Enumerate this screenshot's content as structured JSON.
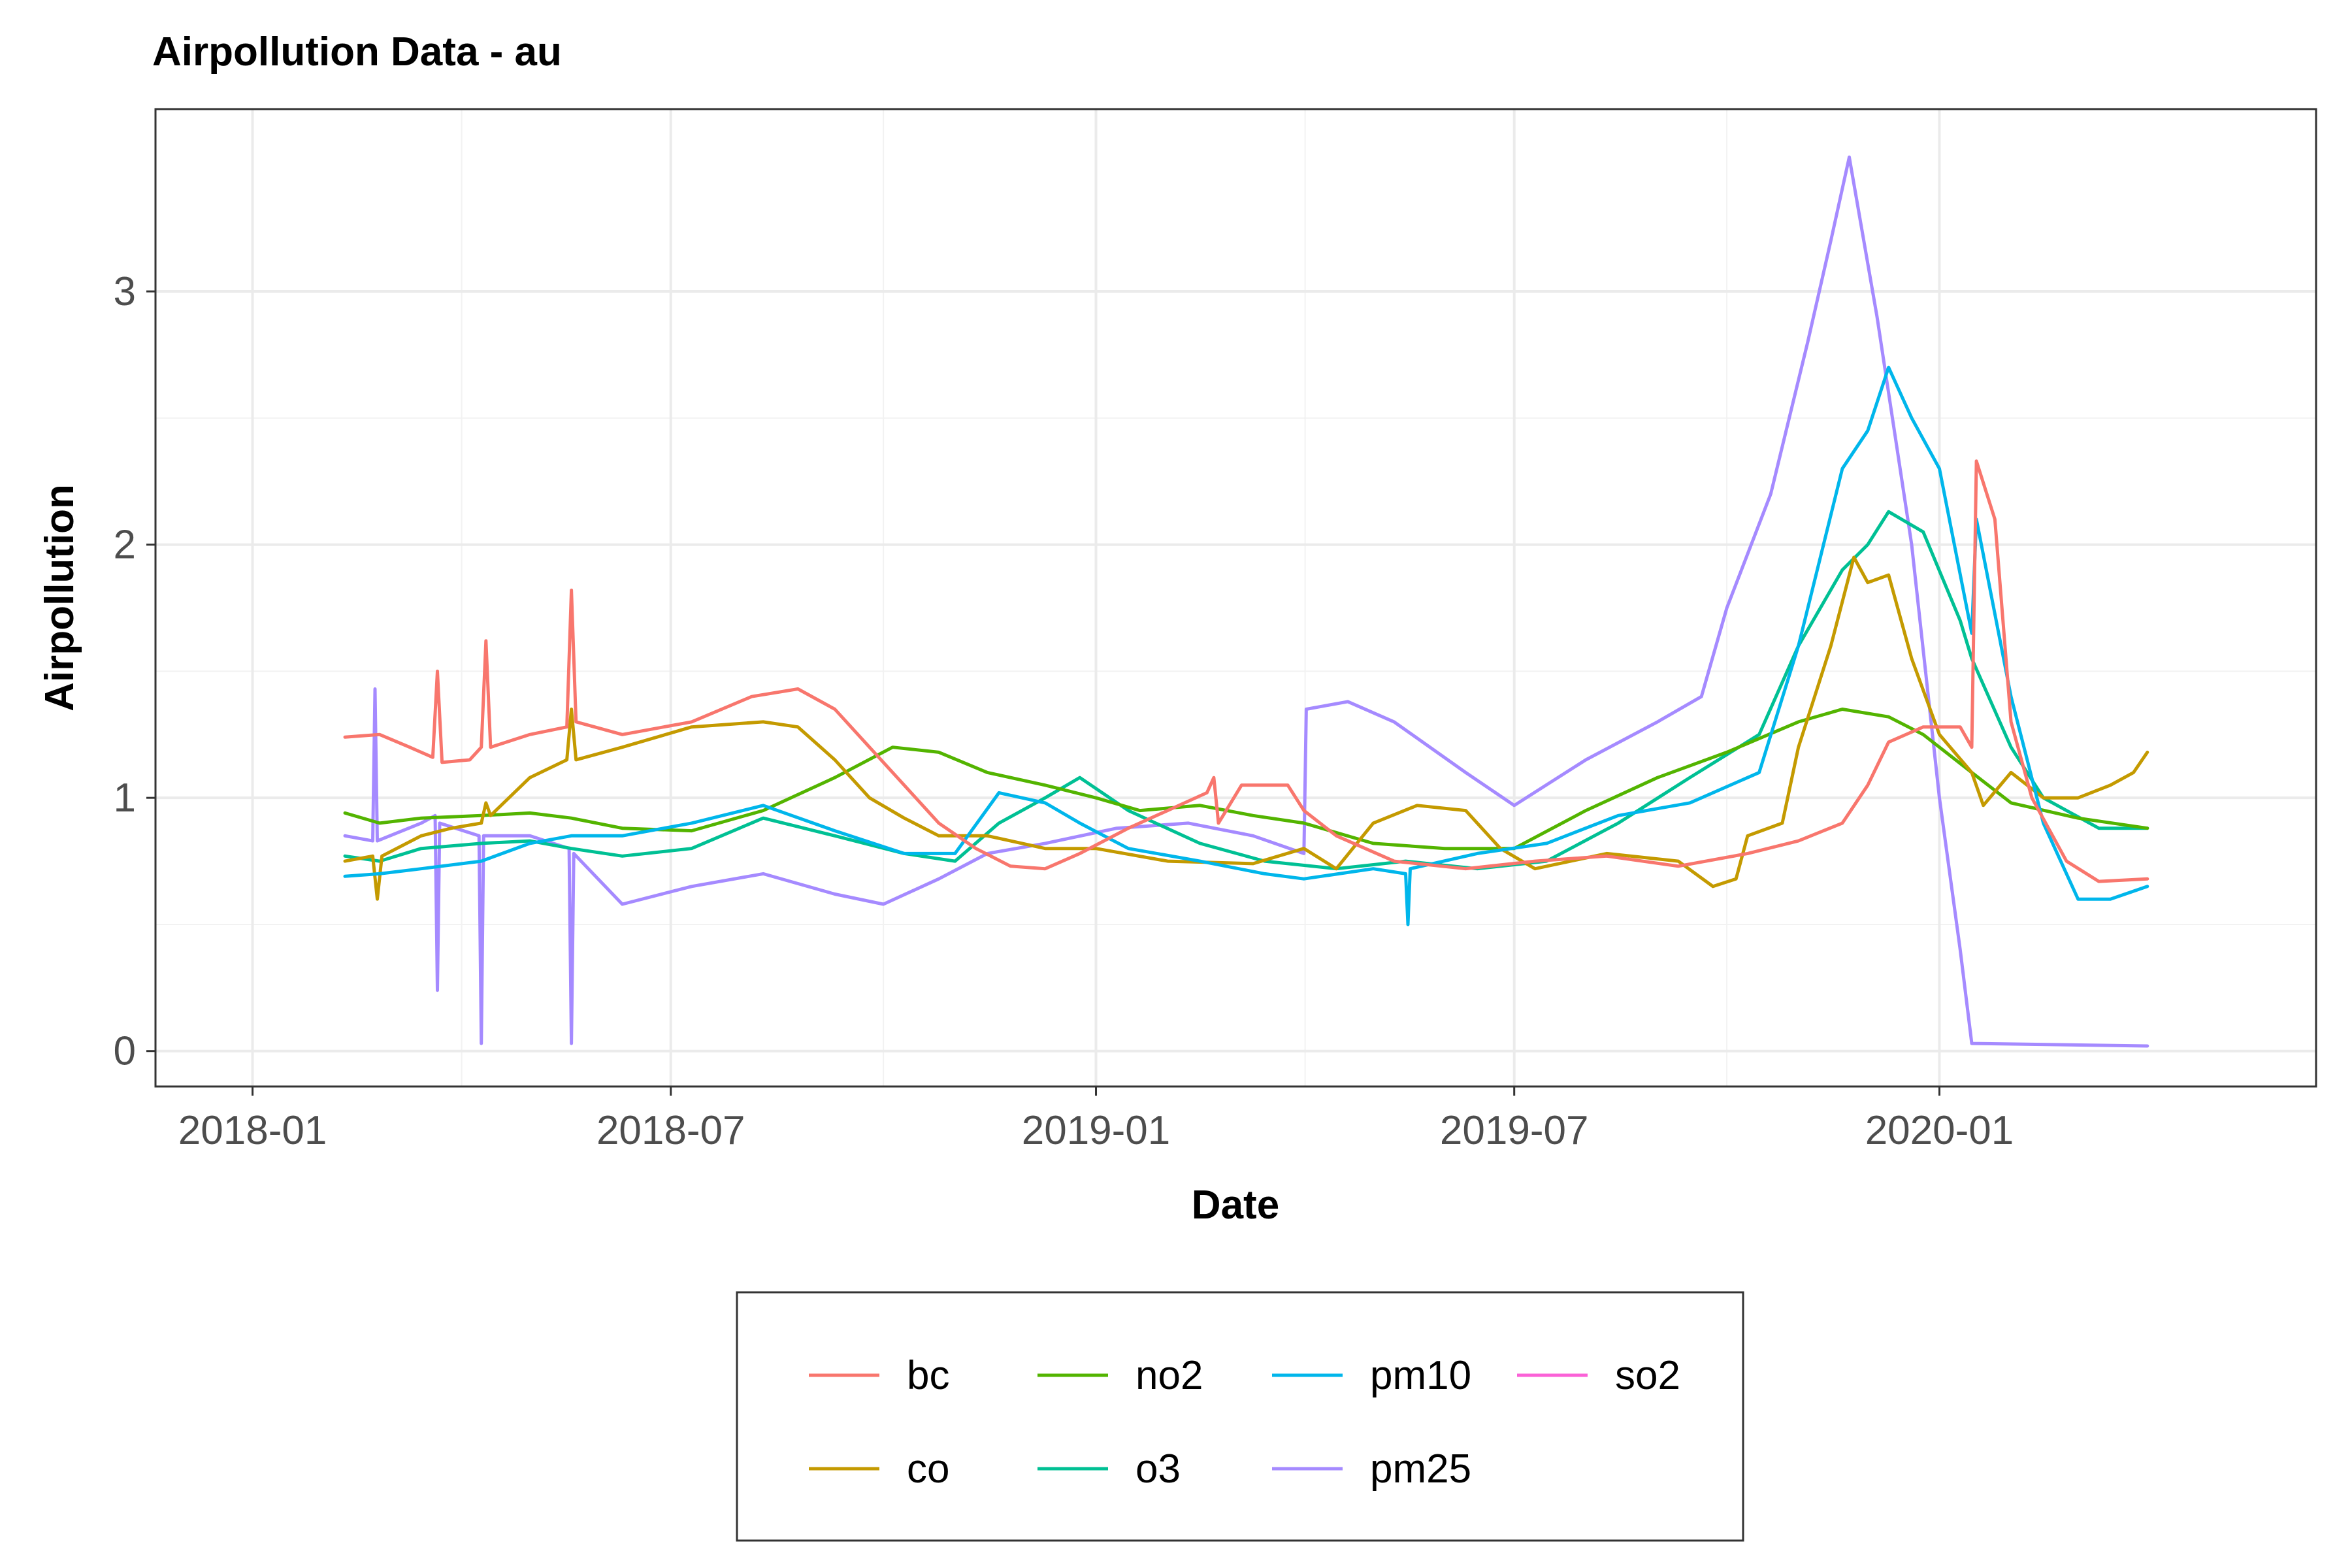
{
  "chart_data": {
    "type": "line",
    "title": "Airpollution Data - au",
    "xlabel": "Date",
    "ylabel": "Airpollution",
    "x_axis": {
      "type": "date",
      "range": [
        "2017-11-20",
        "2020-06-12"
      ],
      "ticks": [
        "2018-01-01",
        "2018-07-01",
        "2019-01-01",
        "2019-07-01",
        "2020-01-01"
      ],
      "tick_labels": [
        "2018-01",
        "2018-07",
        "2019-01",
        "2019-07",
        "2020-01"
      ]
    },
    "y_axis": {
      "range": [
        -0.14,
        3.72
      ],
      "ticks": [
        0,
        1,
        2,
        3
      ],
      "tick_labels": [
        "0",
        "1",
        "2",
        "3"
      ]
    },
    "grid": true,
    "legend": {
      "placement": "bottom",
      "columns": 4,
      "items": [
        "bc",
        "co",
        "no2",
        "o3",
        "pm10",
        "pm25",
        "so2"
      ]
    },
    "series": [
      {
        "name": "bc",
        "color": "#F8766D",
        "points": [
          [
            "2018-02-10",
            1.24
          ],
          [
            "2018-02-25",
            1.25
          ],
          [
            "2018-03-10",
            1.2
          ],
          [
            "2018-03-20",
            1.16
          ],
          [
            "2018-03-22",
            1.5
          ],
          [
            "2018-03-24",
            1.14
          ],
          [
            "2018-04-05",
            1.15
          ],
          [
            "2018-04-10",
            1.2
          ],
          [
            "2018-04-12",
            1.62
          ],
          [
            "2018-04-14",
            1.2
          ],
          [
            "2018-05-01",
            1.25
          ],
          [
            "2018-05-17",
            1.28
          ],
          [
            "2018-05-19",
            1.82
          ],
          [
            "2018-05-21",
            1.3
          ],
          [
            "2018-06-10",
            1.25
          ],
          [
            "2018-07-10",
            1.3
          ],
          [
            "2018-08-05",
            1.4
          ],
          [
            "2018-08-25",
            1.43
          ],
          [
            "2018-09-10",
            1.35
          ],
          [
            "2018-09-25",
            1.2
          ],
          [
            "2018-10-10",
            1.05
          ],
          [
            "2018-10-25",
            0.9
          ],
          [
            "2018-11-10",
            0.8
          ],
          [
            "2018-11-25",
            0.73
          ],
          [
            "2018-12-10",
            0.72
          ],
          [
            "2018-12-25",
            0.78
          ],
          [
            "2019-01-15",
            0.88
          ],
          [
            "2019-02-01",
            0.95
          ],
          [
            "2019-02-18",
            1.02
          ],
          [
            "2019-02-21",
            1.08
          ],
          [
            "2019-02-23",
            0.9
          ],
          [
            "2019-03-05",
            1.05
          ],
          [
            "2019-03-25",
            1.05
          ],
          [
            "2019-04-01",
            0.95
          ],
          [
            "2019-04-15",
            0.85
          ],
          [
            "2019-05-10",
            0.75
          ],
          [
            "2019-06-10",
            0.72
          ],
          [
            "2019-07-10",
            0.75
          ],
          [
            "2019-08-10",
            0.77
          ],
          [
            "2019-09-10",
            0.73
          ],
          [
            "2019-10-10",
            0.78
          ],
          [
            "2019-11-01",
            0.83
          ],
          [
            "2019-11-20",
            0.9
          ],
          [
            "2019-12-01",
            1.05
          ],
          [
            "2019-12-10",
            1.22
          ],
          [
            "2019-12-25",
            1.28
          ],
          [
            "2020-01-10",
            1.28
          ],
          [
            "2020-01-15",
            1.2
          ],
          [
            "2020-01-17",
            2.33
          ],
          [
            "2020-01-25",
            2.1
          ],
          [
            "2020-02-01",
            1.3
          ],
          [
            "2020-02-10",
            1.0
          ],
          [
            "2020-02-25",
            0.75
          ],
          [
            "2020-03-10",
            0.67
          ],
          [
            "2020-03-31",
            0.68
          ]
        ]
      },
      {
        "name": "co",
        "color": "#C49A00",
        "points": [
          [
            "2018-02-10",
            0.75
          ],
          [
            "2018-02-22",
            0.77
          ],
          [
            "2018-02-24",
            0.6
          ],
          [
            "2018-02-26",
            0.77
          ],
          [
            "2018-03-15",
            0.85
          ],
          [
            "2018-03-28",
            0.88
          ],
          [
            "2018-04-10",
            0.9
          ],
          [
            "2018-04-12",
            0.98
          ],
          [
            "2018-04-14",
            0.93
          ],
          [
            "2018-05-01",
            1.08
          ],
          [
            "2018-05-17",
            1.15
          ],
          [
            "2018-05-19",
            1.35
          ],
          [
            "2018-05-21",
            1.15
          ],
          [
            "2018-06-10",
            1.2
          ],
          [
            "2018-07-10",
            1.28
          ],
          [
            "2018-08-10",
            1.3
          ],
          [
            "2018-08-25",
            1.28
          ],
          [
            "2018-09-10",
            1.15
          ],
          [
            "2018-09-25",
            1.0
          ],
          [
            "2018-10-10",
            0.92
          ],
          [
            "2018-10-25",
            0.85
          ],
          [
            "2018-11-15",
            0.85
          ],
          [
            "2018-12-10",
            0.8
          ],
          [
            "2019-01-01",
            0.8
          ],
          [
            "2019-02-01",
            0.75
          ],
          [
            "2019-03-10",
            0.74
          ],
          [
            "2019-04-01",
            0.8
          ],
          [
            "2019-04-15",
            0.72
          ],
          [
            "2019-05-01",
            0.9
          ],
          [
            "2019-05-20",
            0.97
          ],
          [
            "2019-06-10",
            0.95
          ],
          [
            "2019-06-25",
            0.8
          ],
          [
            "2019-07-10",
            0.72
          ],
          [
            "2019-08-10",
            0.78
          ],
          [
            "2019-09-10",
            0.75
          ],
          [
            "2019-09-25",
            0.65
          ],
          [
            "2019-10-05",
            0.68
          ],
          [
            "2019-10-10",
            0.85
          ],
          [
            "2019-10-25",
            0.9
          ],
          [
            "2019-11-01",
            1.2
          ],
          [
            "2019-11-15",
            1.6
          ],
          [
            "2019-11-25",
            1.95
          ],
          [
            "2019-12-01",
            1.85
          ],
          [
            "2019-12-10",
            1.88
          ],
          [
            "2019-12-20",
            1.55
          ],
          [
            "2020-01-01",
            1.25
          ],
          [
            "2020-01-15",
            1.1
          ],
          [
            "2020-01-20",
            0.97
          ],
          [
            "2020-02-01",
            1.1
          ],
          [
            "2020-02-15",
            1.0
          ],
          [
            "2020-03-01",
            1.0
          ],
          [
            "2020-03-15",
            1.05
          ],
          [
            "2020-03-25",
            1.1
          ],
          [
            "2020-03-31",
            1.18
          ]
        ]
      },
      {
        "name": "no2",
        "color": "#53B400",
        "points": [
          [
            "2018-02-10",
            0.94
          ],
          [
            "2018-02-25",
            0.9
          ],
          [
            "2018-03-15",
            0.92
          ],
          [
            "2018-04-10",
            0.93
          ],
          [
            "2018-05-01",
            0.94
          ],
          [
            "2018-05-19",
            0.92
          ],
          [
            "2018-06-10",
            0.88
          ],
          [
            "2018-07-10",
            0.87
          ],
          [
            "2018-08-10",
            0.95
          ],
          [
            "2018-09-10",
            1.08
          ],
          [
            "2018-10-05",
            1.2
          ],
          [
            "2018-10-25",
            1.18
          ],
          [
            "2018-11-15",
            1.1
          ],
          [
            "2018-12-10",
            1.05
          ],
          [
            "2019-01-01",
            1.0
          ],
          [
            "2019-01-20",
            0.95
          ],
          [
            "2019-02-15",
            0.97
          ],
          [
            "2019-03-10",
            0.93
          ],
          [
            "2019-04-01",
            0.9
          ],
          [
            "2019-05-01",
            0.82
          ],
          [
            "2019-06-01",
            0.8
          ],
          [
            "2019-07-01",
            0.8
          ],
          [
            "2019-08-01",
            0.95
          ],
          [
            "2019-09-01",
            1.08
          ],
          [
            "2019-10-01",
            1.18
          ],
          [
            "2019-11-01",
            1.3
          ],
          [
            "2019-11-20",
            1.35
          ],
          [
            "2019-12-10",
            1.32
          ],
          [
            "2019-12-25",
            1.25
          ],
          [
            "2020-01-15",
            1.1
          ],
          [
            "2020-02-01",
            0.98
          ],
          [
            "2020-03-01",
            0.92
          ],
          [
            "2020-03-31",
            0.88
          ]
        ]
      },
      {
        "name": "o3",
        "color": "#00C094",
        "points": [
          [
            "2018-02-10",
            0.77
          ],
          [
            "2018-02-25",
            0.75
          ],
          [
            "2018-03-15",
            0.8
          ],
          [
            "2018-04-10",
            0.82
          ],
          [
            "2018-05-01",
            0.83
          ],
          [
            "2018-05-19",
            0.8
          ],
          [
            "2018-06-10",
            0.77
          ],
          [
            "2018-07-10",
            0.8
          ],
          [
            "2018-08-10",
            0.92
          ],
          [
            "2018-09-10",
            0.85
          ],
          [
            "2018-10-10",
            0.78
          ],
          [
            "2018-11-01",
            0.75
          ],
          [
            "2018-11-20",
            0.9
          ],
          [
            "2018-12-10",
            1.0
          ],
          [
            "2018-12-25",
            1.08
          ],
          [
            "2019-01-15",
            0.95
          ],
          [
            "2019-02-15",
            0.82
          ],
          [
            "2019-03-15",
            0.75
          ],
          [
            "2019-04-15",
            0.72
          ],
          [
            "2019-05-15",
            0.75
          ],
          [
            "2019-06-15",
            0.72
          ],
          [
            "2019-07-15",
            0.75
          ],
          [
            "2019-08-15",
            0.9
          ],
          [
            "2019-09-15",
            1.08
          ],
          [
            "2019-10-15",
            1.25
          ],
          [
            "2019-11-01",
            1.6
          ],
          [
            "2019-11-20",
            1.9
          ],
          [
            "2019-12-01",
            2.0
          ],
          [
            "2019-12-10",
            2.13
          ],
          [
            "2019-12-25",
            2.05
          ],
          [
            "2020-01-10",
            1.7
          ],
          [
            "2020-01-15",
            1.55
          ],
          [
            "2020-02-01",
            1.2
          ],
          [
            "2020-02-15",
            1.0
          ],
          [
            "2020-03-10",
            0.88
          ],
          [
            "2020-03-31",
            0.88
          ]
        ]
      },
      {
        "name": "pm10",
        "color": "#00B6EB",
        "points": [
          [
            "2018-02-10",
            0.69
          ],
          [
            "2018-02-25",
            0.7
          ],
          [
            "2018-03-15",
            0.72
          ],
          [
            "2018-04-10",
            0.75
          ],
          [
            "2018-05-01",
            0.82
          ],
          [
            "2018-05-19",
            0.85
          ],
          [
            "2018-06-10",
            0.85
          ],
          [
            "2018-07-10",
            0.9
          ],
          [
            "2018-08-10",
            0.97
          ],
          [
            "2018-09-10",
            0.87
          ],
          [
            "2018-10-10",
            0.78
          ],
          [
            "2018-11-01",
            0.78
          ],
          [
            "2018-11-20",
            1.02
          ],
          [
            "2018-12-10",
            0.98
          ],
          [
            "2018-12-25",
            0.9
          ],
          [
            "2019-01-15",
            0.8
          ],
          [
            "2019-02-15",
            0.75
          ],
          [
            "2019-03-15",
            0.7
          ],
          [
            "2019-04-01",
            0.68
          ],
          [
            "2019-05-01",
            0.72
          ],
          [
            "2019-05-15",
            0.7
          ],
          [
            "2019-05-16",
            0.5
          ],
          [
            "2019-05-17",
            0.72
          ],
          [
            "2019-06-15",
            0.78
          ],
          [
            "2019-07-15",
            0.82
          ],
          [
            "2019-08-15",
            0.93
          ],
          [
            "2019-09-15",
            0.98
          ],
          [
            "2019-10-15",
            1.1
          ],
          [
            "2019-11-01",
            1.6
          ],
          [
            "2019-11-20",
            2.3
          ],
          [
            "2019-12-01",
            2.45
          ],
          [
            "2019-12-10",
            2.7
          ],
          [
            "2019-12-20",
            2.5
          ],
          [
            "2020-01-01",
            2.3
          ],
          [
            "2020-01-15",
            1.65
          ],
          [
            "2020-01-17",
            2.1
          ],
          [
            "2020-02-01",
            1.4
          ],
          [
            "2020-02-15",
            0.9
          ],
          [
            "2020-03-01",
            0.6
          ],
          [
            "2020-03-15",
            0.6
          ],
          [
            "2020-03-31",
            0.65
          ]
        ]
      },
      {
        "name": "pm25",
        "color": "#A58AFF",
        "points": [
          [
            "2018-02-10",
            0.85
          ],
          [
            "2018-02-22",
            0.83
          ],
          [
            "2018-02-23",
            1.43
          ],
          [
            "2018-02-24",
            0.83
          ],
          [
            "2018-03-15",
            0.9
          ],
          [
            "2018-03-21",
            0.93
          ],
          [
            "2018-03-22",
            0.24
          ],
          [
            "2018-03-23",
            0.9
          ],
          [
            "2018-04-09",
            0.85
          ],
          [
            "2018-04-10",
            0.03
          ],
          [
            "2018-04-11",
            0.85
          ],
          [
            "2018-05-01",
            0.85
          ],
          [
            "2018-05-18",
            0.8
          ],
          [
            "2018-05-19",
            0.03
          ],
          [
            "2018-05-20",
            0.78
          ],
          [
            "2018-06-10",
            0.58
          ],
          [
            "2018-07-10",
            0.65
          ],
          [
            "2018-08-10",
            0.7
          ],
          [
            "2018-09-10",
            0.62
          ],
          [
            "2018-10-01",
            0.58
          ],
          [
            "2018-10-25",
            0.68
          ],
          [
            "2018-11-15",
            0.78
          ],
          [
            "2018-12-10",
            0.82
          ],
          [
            "2019-01-10",
            0.88
          ],
          [
            "2019-02-10",
            0.9
          ],
          [
            "2019-03-10",
            0.85
          ],
          [
            "2019-04-01",
            0.78
          ],
          [
            "2019-04-02",
            1.35
          ],
          [
            "2019-04-20",
            1.38
          ],
          [
            "2019-05-10",
            1.3
          ],
          [
            "2019-06-10",
            1.1
          ],
          [
            "2019-07-01",
            0.97
          ],
          [
            "2019-08-01",
            1.15
          ],
          [
            "2019-09-01",
            1.3
          ],
          [
            "2019-09-20",
            1.4
          ],
          [
            "2019-10-01",
            1.75
          ],
          [
            "2019-10-20",
            2.2
          ],
          [
            "2019-11-05",
            2.8
          ],
          [
            "2019-11-15",
            3.2
          ],
          [
            "2019-11-23",
            3.53
          ],
          [
            "2019-12-05",
            2.9
          ],
          [
            "2019-12-20",
            2.0
          ],
          [
            "2020-01-01",
            1.0
          ],
          [
            "2020-01-10",
            0.4
          ],
          [
            "2020-01-15",
            0.03
          ],
          [
            "2020-03-31",
            0.02
          ]
        ]
      },
      {
        "name": "so2",
        "color": "#FB61D7",
        "points": []
      }
    ]
  }
}
